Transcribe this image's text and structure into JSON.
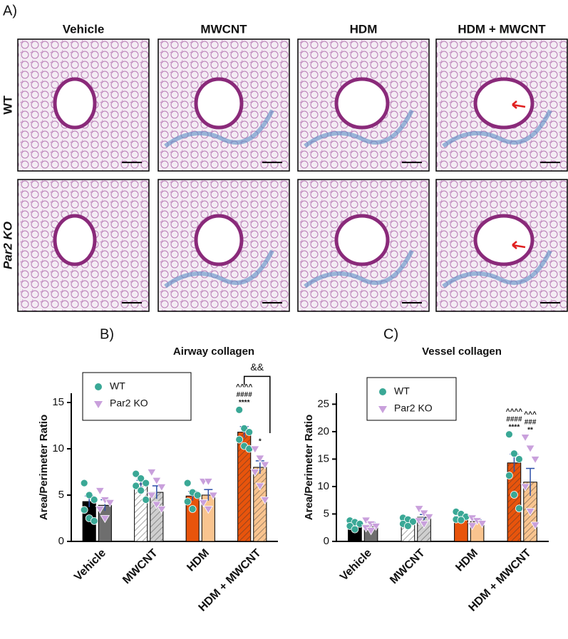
{
  "panel_a": "A)",
  "column_headers": [
    "Vehicle",
    "MWCNT",
    "HDM",
    "HDM + MWCNT"
  ],
  "row_labels": [
    "WT",
    "Par2 KO"
  ],
  "chart_data": [
    {
      "type": "bar",
      "panel": "B)",
      "title": "Airway collagen",
      "y_label": "Area/Perimeter Ratio",
      "categories": [
        "Vehicle",
        "MWCNT",
        "HDM",
        "HDM + MWCNT"
      ],
      "ylim": [
        0,
        16
      ],
      "yticks": [
        0,
        5,
        10,
        15
      ],
      "hatch": [
        false,
        true,
        false,
        true
      ],
      "bracket_label": "&&",
      "series": [
        {
          "name": "WT",
          "marker": "circle",
          "marker_color": "#3aa896",
          "colors": [
            "#000000",
            "#ffffff",
            "#e8540c",
            "#e8540c"
          ],
          "values": [
            4.3,
            6.2,
            4.9,
            11.8
          ],
          "errors": [
            0.6,
            0.4,
            0.5,
            0.6
          ],
          "points": [
            [
              6.3,
              5.0,
              4.5,
              3.4,
              2.5,
              2.2
            ],
            [
              7.3,
              6.8,
              6.3,
              6.0,
              5.5,
              4.5
            ],
            [
              6.3,
              5.3,
              5.0,
              4.3,
              3.5
            ],
            [
              14.2,
              12.2,
              11.8,
              11.0,
              10.3,
              10.0
            ]
          ],
          "significance": [
            null,
            null,
            null,
            [
              "^^^^",
              "####",
              "****"
            ]
          ]
        },
        {
          "name": "Par2 KO",
          "marker": "triangle",
          "marker_color": "#c9a0dc",
          "colors": [
            "#6e6e6e",
            "#cfcfcf",
            "#f9c48f",
            "#f9c48f"
          ],
          "values": [
            3.9,
            5.3,
            5.0,
            8.0
          ],
          "errors": [
            0.6,
            0.7,
            0.6,
            0.7
          ],
          "points": [
            [
              5.5,
              4.5,
              4.2,
              3.5,
              2.5
            ],
            [
              7.5,
              6.6,
              5.9,
              5.0,
              4.0,
              3.5
            ],
            [
              6.5,
              6.5,
              5.0,
              4.2,
              3.5
            ],
            [
              10.0,
              9.0,
              8.3,
              7.5,
              6.0,
              4.5
            ]
          ],
          "significance": [
            null,
            null,
            null,
            [
              "*"
            ]
          ]
        }
      ]
    },
    {
      "type": "bar",
      "panel": "C)",
      "title": "Vessel collagen",
      "y_label": "Area/Perimeter Ratio",
      "categories": [
        "Vehicle",
        "MWCNT",
        "HDM",
        "HDM + MWCNT"
      ],
      "ylim": [
        0,
        27
      ],
      "yticks": [
        0,
        5,
        10,
        15,
        20,
        25
      ],
      "hatch": [
        false,
        true,
        false,
        true
      ],
      "series": [
        {
          "name": "WT",
          "marker": "circle",
          "marker_color": "#3aa896",
          "colors": [
            "#000000",
            "#ffffff",
            "#e8540c",
            "#e8540c"
          ],
          "values": [
            3.2,
            3.6,
            4.6,
            14.3
          ],
          "errors": [
            0.4,
            0.4,
            0.3,
            1.6
          ],
          "points": [
            [
              3.8,
              3.5,
              3.2,
              2.8,
              2.2
            ],
            [
              4.3,
              4.0,
              3.6,
              3.2,
              2.8
            ],
            [
              5.4,
              5.0,
              4.5,
              4.0,
              3.9
            ],
            [
              19.5,
              16.0,
              15.0,
              12.0,
              8.5,
              6.0
            ]
          ],
          "significance": [
            null,
            null,
            null,
            [
              "^^^^",
              "####",
              "****"
            ]
          ]
        },
        {
          "name": "Par2 KO",
          "marker": "triangle",
          "marker_color": "#c9a0dc",
          "colors": [
            "#6e6e6e",
            "#cfcfcf",
            "#f9c48f",
            "#f9c48f"
          ],
          "values": [
            3.0,
            4.4,
            3.6,
            10.8
          ],
          "errors": [
            0.5,
            0.5,
            0.3,
            2.5
          ],
          "points": [
            [
              3.9,
              3.2,
              2.8,
              2.5,
              2.0
            ],
            [
              6.0,
              5.2,
              4.5,
              3.8,
              3.2
            ],
            [
              4.3,
              3.8,
              3.3,
              2.9
            ],
            [
              19.0,
              17.0,
              15.0,
              10.0,
              5.5,
              3.0
            ]
          ],
          "significance": [
            null,
            null,
            null,
            [
              "^^^",
              "###",
              "**"
            ]
          ]
        }
      ]
    }
  ]
}
